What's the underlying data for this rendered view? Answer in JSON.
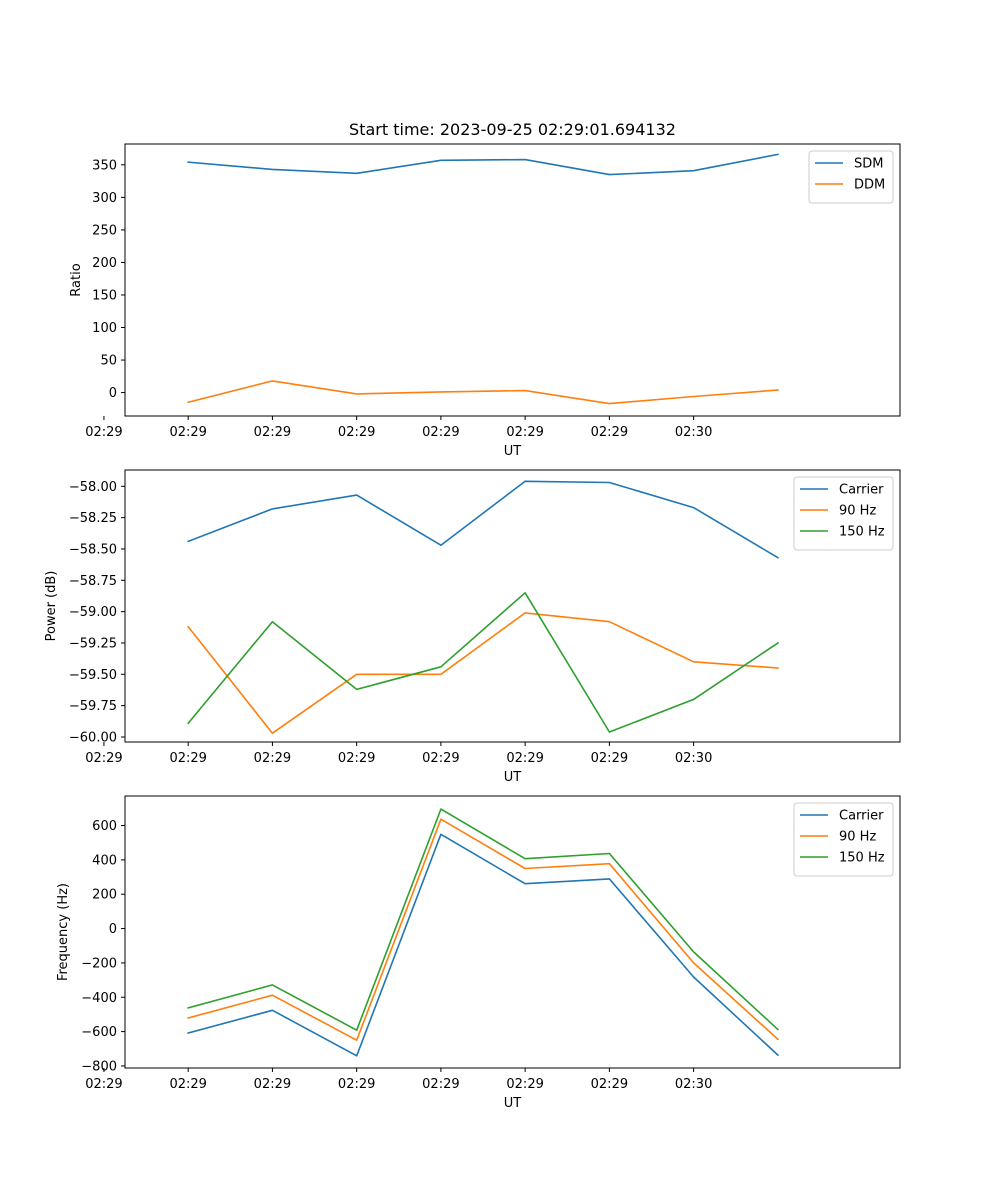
{
  "chart_data": [
    {
      "type": "line",
      "title": "Start time: 2023-09-25 02:29:01.694132",
      "xlabel": "UT",
      "ylabel": "Ratio",
      "xticks": [
        "02:29",
        "02:29",
        "02:29",
        "02:29",
        "02:29",
        "02:29",
        "02:29",
        "02:30"
      ],
      "x": [
        1,
        2,
        3,
        4,
        5,
        6,
        7,
        8
      ],
      "xlim": [
        0.25,
        9.45
      ],
      "ylim": [
        -36,
        382
      ],
      "yticks": [
        0,
        50,
        100,
        150,
        200,
        250,
        300,
        350
      ],
      "legend": "upper right",
      "series": [
        {
          "name": "SDM",
          "color": "#1f77b4",
          "values": [
            354,
            343,
            337,
            357,
            358,
            335,
            341,
            366
          ]
        },
        {
          "name": "DDM",
          "color": "#ff7f0e",
          "values": [
            -15,
            18,
            -2,
            1,
            3,
            -17,
            -6,
            4
          ]
        }
      ]
    },
    {
      "type": "line",
      "title": "",
      "xlabel": "UT",
      "ylabel": "Power (dB)",
      "xticks": [
        "02:29",
        "02:29",
        "02:29",
        "02:29",
        "02:29",
        "02:29",
        "02:29",
        "02:30"
      ],
      "x": [
        1,
        2,
        3,
        4,
        5,
        6,
        7,
        8
      ],
      "xlim": [
        0.25,
        9.45
      ],
      "ylim": [
        -60.04,
        -57.87
      ],
      "yticks": [
        -60.0,
        -59.75,
        -59.5,
        -59.25,
        -59.0,
        -58.75,
        -58.5,
        -58.25,
        -58.0
      ],
      "ytick_labels": [
        "−60.00",
        "−59.75",
        "−59.50",
        "−59.25",
        "−59.00",
        "−58.75",
        "−58.50",
        "−58.25",
        "−58.00"
      ],
      "legend": "upper right",
      "series": [
        {
          "name": "Carrier",
          "color": "#1f77b4",
          "values": [
            -58.44,
            -58.18,
            -58.07,
            -58.47,
            -57.96,
            -57.97,
            -58.17,
            -58.57
          ]
        },
        {
          "name": "90 Hz",
          "color": "#ff7f0e",
          "values": [
            -59.12,
            -59.97,
            -59.5,
            -59.5,
            -59.01,
            -59.08,
            -59.4,
            -59.45
          ]
        },
        {
          "name": "150 Hz",
          "color": "#2ca02c",
          "values": [
            -59.89,
            -59.08,
            -59.62,
            -59.44,
            -58.85,
            -59.96,
            -59.7,
            -59.25
          ]
        }
      ]
    },
    {
      "type": "line",
      "title": "",
      "xlabel": "UT",
      "ylabel": "Frequency (Hz)",
      "xticks": [
        "02:29",
        "02:29",
        "02:29",
        "02:29",
        "02:29",
        "02:29",
        "02:29",
        "02:30"
      ],
      "x": [
        1,
        2,
        3,
        4,
        5,
        6,
        7,
        8
      ],
      "xlim": [
        0.25,
        9.45
      ],
      "ylim": [
        -812,
        772
      ],
      "yticks": [
        -800,
        -600,
        -400,
        -200,
        0,
        200,
        400,
        600
      ],
      "ytick_labels": [
        "−800",
        "−600",
        "−400",
        "−200",
        "0",
        "200",
        "400",
        "600"
      ],
      "legend": "upper right",
      "series": [
        {
          "name": "Carrier",
          "color": "#1f77b4",
          "values": [
            -608,
            -476,
            -741,
            549,
            261,
            289,
            -282,
            -737
          ]
        },
        {
          "name": "90 Hz",
          "color": "#ff7f0e",
          "values": [
            -521,
            -388,
            -650,
            637,
            350,
            378,
            -200,
            -645
          ]
        },
        {
          "name": "150 Hz",
          "color": "#2ca02c",
          "values": [
            -462,
            -328,
            -592,
            696,
            407,
            437,
            -136,
            -588
          ]
        }
      ]
    }
  ]
}
